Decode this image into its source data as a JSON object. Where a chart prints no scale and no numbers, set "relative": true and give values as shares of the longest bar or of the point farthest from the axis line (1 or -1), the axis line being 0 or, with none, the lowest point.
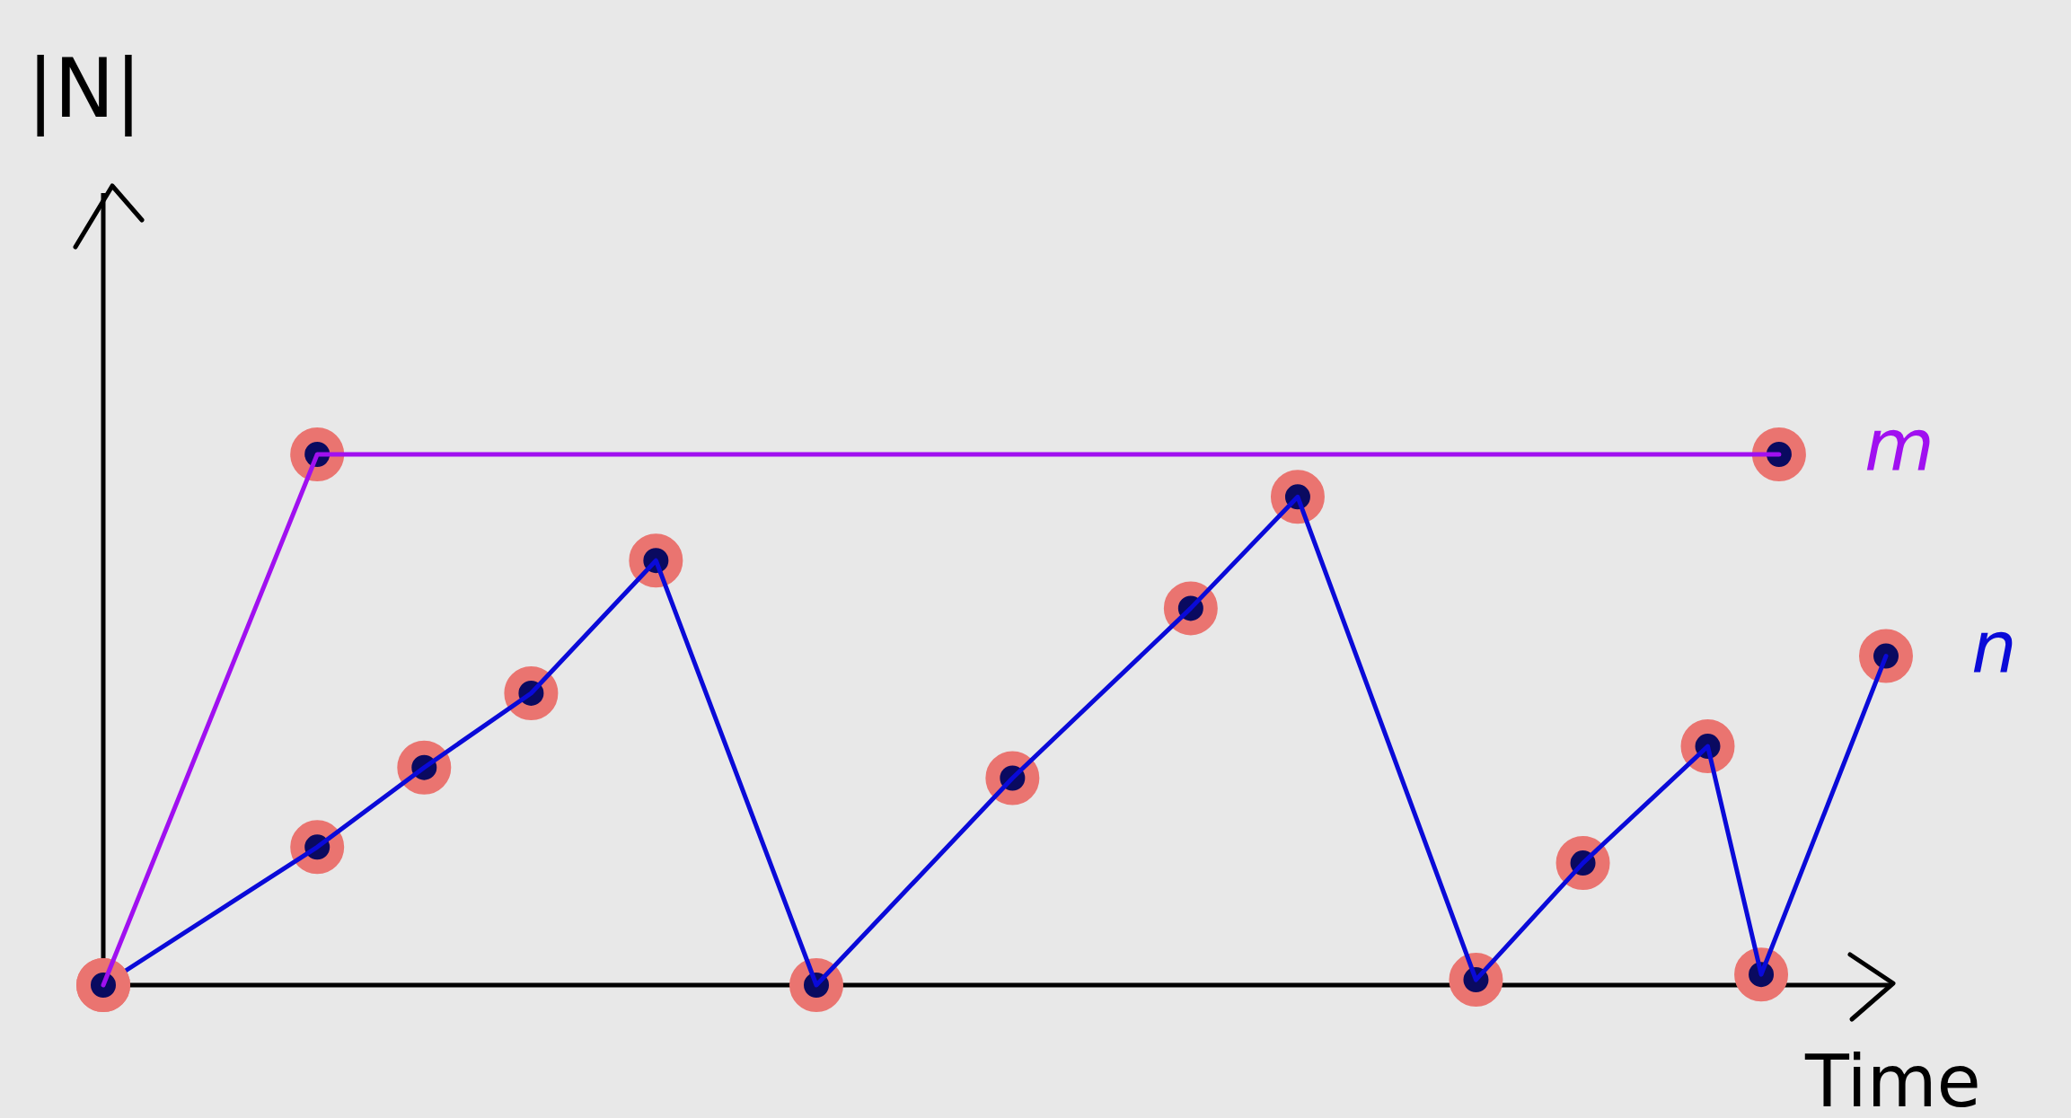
{
  "chart_data": {
    "type": "line",
    "relative": true,
    "ylabel": "|N|",
    "xlabel": "Time",
    "marker": "circle",
    "line_style": "solid",
    "legend": false,
    "tick_labels": false,
    "categories": [
      null,
      null,
      null,
      null,
      null,
      null,
      null,
      null,
      null,
      null,
      null,
      null,
      null,
      null,
      null,
      null,
      null,
      null,
      null,
      null,
      null,
      null,
      null,
      null,
      null,
      null,
      null,
      null,
      null,
      null,
      null,
      null,
      null,
      null,
      null,
      null,
      null,
      null,
      null,
      null,
      null,
      null,
      null,
      null,
      null,
      null,
      null,
      null,
      null,
      null,
      null,
      null,
      null,
      null,
      null,
      null,
      null,
      null,
      null,
      null,
      null,
      null,
      null,
      null,
      null,
      null,
      null,
      null,
      null,
      null,
      null,
      null,
      null,
      null,
      null,
      null,
      null,
      null,
      null,
      null,
      null,
      null,
      null,
      null,
      null,
      null,
      null,
      null,
      null,
      null,
      null,
      null,
      null,
      null,
      null,
      null,
      null,
      null,
      null,
      null,
      null
    ],
    "series": [
      {
        "name": "m",
        "color": "#a010f0",
        "values": [
          0,
          null,
          null,
          null,
          null,
          null,
          null,
          null,
          null,
          null,
          null,
          null,
          1,
          null,
          null,
          null,
          null,
          null,
          null,
          null,
          null,
          null,
          null,
          null,
          null,
          null,
          null,
          null,
          null,
          null,
          null,
          null,
          null,
          null,
          null,
          null,
          null,
          null,
          null,
          null,
          null,
          null,
          null,
          null,
          null,
          null,
          null,
          null,
          null,
          null,
          null,
          null,
          null,
          null,
          null,
          null,
          null,
          null,
          null,
          null,
          null,
          null,
          null,
          null,
          null,
          null,
          null,
          null,
          null,
          null,
          null,
          null,
          null,
          null,
          null,
          null,
          null,
          null,
          null,
          null,
          null,
          null,
          null,
          null,
          null,
          null,
          null,
          null,
          null,
          null,
          null,
          null,
          null,
          null,
          1,
          null,
          null,
          null,
          null,
          null,
          null
        ]
      },
      {
        "name": "n",
        "color": "#0a0ad8",
        "values": [
          0,
          null,
          null,
          null,
          null,
          null,
          null,
          null,
          null,
          null,
          null,
          null,
          0.26,
          null,
          null,
          null,
          null,
          null,
          0.41,
          null,
          null,
          null,
          null,
          null,
          0.55,
          null,
          null,
          null,
          null,
          null,
          null,
          0.8,
          null,
          null,
          null,
          null,
          null,
          null,
          null,
          null,
          0,
          null,
          null,
          null,
          null,
          null,
          null,
          null,
          null,
          null,
          null,
          0.39,
          null,
          null,
          null,
          null,
          null,
          null,
          null,
          null,
          null,
          0.71,
          null,
          null,
          null,
          null,
          null,
          0.92,
          null,
          null,
          null,
          null,
          null,
          null,
          null,
          null,
          null,
          0.01,
          null,
          null,
          null,
          null,
          null,
          0.23,
          null,
          null,
          null,
          null,
          null,
          null,
          0.45,
          null,
          null,
          0.02,
          null,
          null,
          null,
          null,
          null,
          null,
          0.62
        ]
      }
    ]
  }
}
